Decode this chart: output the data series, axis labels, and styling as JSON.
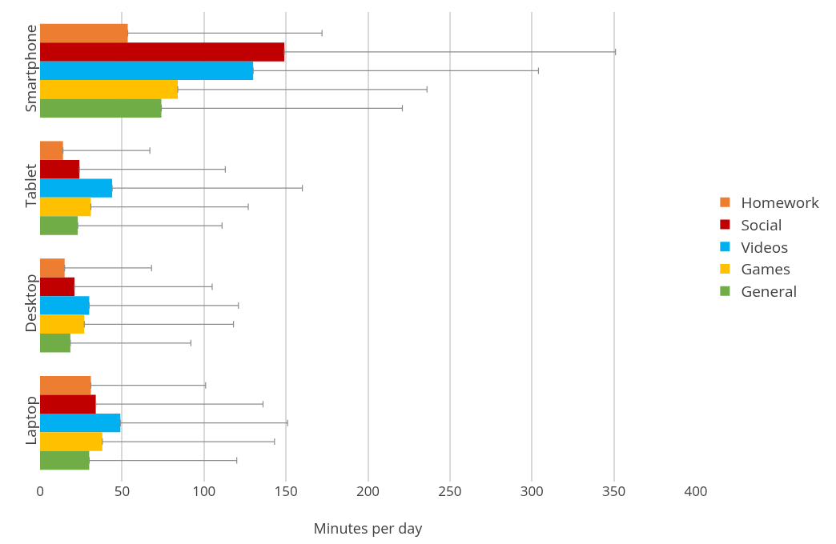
{
  "chart_data": {
    "type": "bar",
    "orientation": "horizontal",
    "xlabel": "Minutes per day",
    "categories": [
      "Smartphone",
      "Tablet",
      "Desktop",
      "Laptop"
    ],
    "series": [
      {
        "name": "Homework",
        "color": "#ed7d31",
        "values": [
          53.5,
          14,
          15,
          31
        ],
        "errors": [
          [
            53.5,
            172
          ],
          [
            14,
            67
          ],
          [
            15,
            68
          ],
          [
            31,
            101
          ]
        ]
      },
      {
        "name": "Social",
        "color": "#c00000",
        "values": [
          149,
          24,
          21,
          34
        ],
        "errors": [
          [
            149,
            351
          ],
          [
            24,
            113
          ],
          [
            21,
            105
          ],
          [
            34,
            136
          ]
        ]
      },
      {
        "name": "Videos",
        "color": "#00b0f0",
        "values": [
          130,
          44,
          30,
          49
        ],
        "errors": [
          [
            130,
            304
          ],
          [
            44,
            160
          ],
          [
            30,
            121
          ],
          [
            49,
            151
          ]
        ]
      },
      {
        "name": "Games",
        "color": "#ffc000",
        "values": [
          84,
          31,
          27,
          38
        ],
        "errors": [
          [
            84,
            236
          ],
          [
            31,
            127
          ],
          [
            27,
            118
          ],
          [
            38,
            143
          ]
        ]
      },
      {
        "name": "General",
        "color": "#70ad47",
        "values": [
          74,
          23,
          18.5,
          30
        ],
        "errors": [
          [
            74,
            221
          ],
          [
            23,
            111
          ],
          [
            18.5,
            92
          ],
          [
            30,
            120
          ]
        ]
      }
    ],
    "xlim": [
      0,
      400
    ],
    "xticks": [
      0,
      50,
      100,
      150,
      200,
      250,
      300,
      350,
      400
    ],
    "grid": "x",
    "legend": "right"
  }
}
